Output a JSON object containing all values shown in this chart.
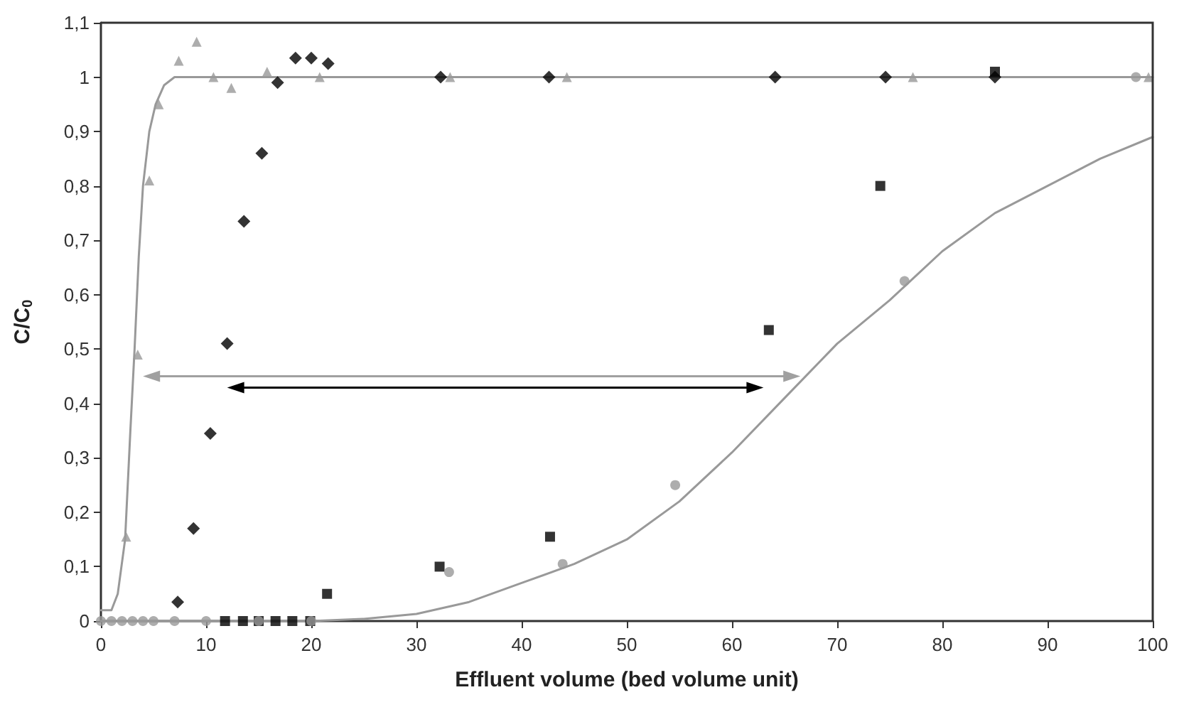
{
  "chart_data": {
    "type": "scatter",
    "xlabel": "Effluent volume (bed volume unit)",
    "ylabel": "C/C$_{0}$",
    "xlim": [
      0,
      100
    ],
    "xticks": [
      0,
      10,
      20,
      30,
      40,
      50,
      60,
      70,
      80,
      90,
      100
    ],
    "ylim": [
      0,
      1.1
    ],
    "yticks": [
      0,
      {
        "value": 0.1,
        "label": "0,1"
      },
      {
        "value": 0.2,
        "label": "0,2"
      },
      {
        "value": 0.3,
        "label": "0,3"
      },
      {
        "value": 0.4,
        "label": "0,4"
      },
      {
        "value": 0.5,
        "label": "0,5"
      },
      {
        "value": 0.6,
        "label": "0,6"
      },
      {
        "value": 0.7,
        "label": "0,7"
      },
      {
        "value": 0.8,
        "label": "0,8"
      },
      {
        "value": 0.9,
        "label": "0,9"
      },
      1,
      {
        "value": 1.1,
        "label": "1,1"
      }
    ],
    "grid": false,
    "legend": false,
    "series": [
      {
        "marker": "triangle",
        "color": "#999999",
        "x": [
          2.4,
          3.5,
          4.6,
          5.5,
          7.4,
          9.1,
          10.7,
          12.4,
          15.8,
          20.8,
          33.2,
          44.3,
          77.2,
          99.6
        ],
        "values": [
          0.155,
          0.49,
          0.81,
          0.95,
          1.03,
          1.065,
          1.0,
          0.98,
          1.01,
          1.0,
          1.0,
          1.0,
          1.0,
          1.0
        ]
      },
      {
        "marker": "diamond",
        "color": "#000000",
        "x": [
          7.3,
          8.8,
          10.4,
          12.0,
          13.6,
          15.3,
          16.8,
          18.5,
          20.0,
          21.6,
          32.3,
          42.6,
          64.1,
          74.6,
          85
        ],
        "values": [
          0.035,
          0.17,
          0.345,
          0.51,
          0.735,
          0.86,
          0.99,
          1.035,
          1.035,
          1.025,
          1.0,
          1.0,
          1.0,
          1.0,
          1.0
        ]
      },
      {
        "marker": "square",
        "color": "#000000",
        "x": [
          11.8,
          13.5,
          15.0,
          16.6,
          18.2,
          19.9,
          21.5,
          32.2,
          42.7,
          63.5,
          74.1,
          85
        ],
        "values": [
          0,
          0,
          0,
          0,
          0,
          0,
          0.05,
          0.1,
          0.155,
          0.535,
          0.8,
          1.01
        ]
      },
      {
        "marker": "circle",
        "color": "#999999",
        "x": [
          0,
          1,
          2,
          3,
          4,
          5,
          7,
          10,
          15,
          20,
          33.1,
          43.9,
          54.6,
          76.4,
          98.4
        ],
        "values": [
          0,
          0,
          0,
          0,
          0,
          0,
          0,
          0,
          0,
          0,
          0.09,
          0.105,
          0.25,
          0.625,
          1.0
        ]
      },
      {
        "type": "line",
        "marker": "none",
        "color": "#999999",
        "x": [
          0,
          1,
          1.6,
          2.3,
          2.8,
          3.2,
          3.6,
          4,
          4.6,
          5.2,
          6,
          7,
          10,
          20,
          50,
          100
        ],
        "values": [
          0.02,
          0.02,
          0.05,
          0.15,
          0.35,
          0.5,
          0.67,
          0.8,
          0.9,
          0.95,
          0.985,
          1.0,
          1.0,
          1.0,
          1.0,
          1.0
        ]
      },
      {
        "type": "line",
        "marker": "none",
        "color": "#999999",
        "x": [
          0,
          20,
          25,
          30,
          35,
          40,
          45,
          50,
          55,
          60,
          65,
          70,
          75,
          80,
          85,
          90,
          95,
          100
        ],
        "values": [
          0,
          0,
          0.004,
          0.013,
          0.035,
          0.07,
          0.105,
          0.15,
          0.22,
          0.31,
          0.41,
          0.51,
          0.59,
          0.68,
          0.75,
          0.8,
          0.85,
          0.89
        ]
      }
    ]
  }
}
